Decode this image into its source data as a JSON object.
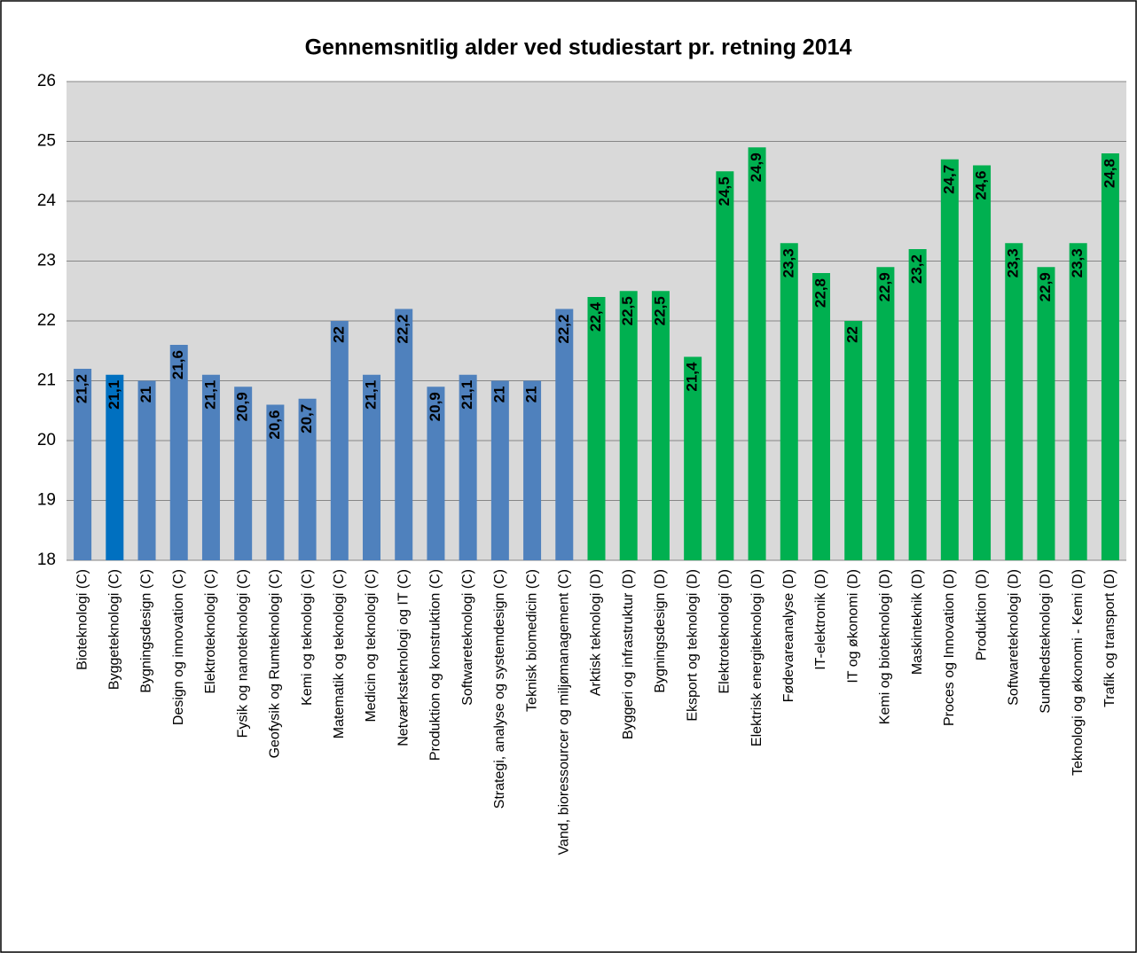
{
  "chart_data": {
    "type": "bar",
    "title": "Gennemsnitlig alder ved studiestart pr. retning 2014",
    "categories": [
      "Bioteknologi (C)",
      "Byggeteknologi (C)",
      "Bygningsdesign (C)",
      "Design og innovation (C)",
      "Elektroteknologi (C)",
      "Fysik og nanoteknologi (C)",
      "Geofysik og Rumteknologi (C)",
      "Kemi og teknologi (C)",
      "Matematik og teknologi (C)",
      "Medicin og teknologi (C)",
      "Netværksteknologi og IT (C)",
      "Produktion og konstruktion (C)",
      "Softwareteknologi (C)",
      "Strategi, analyse og systemdesign (C)",
      "Teknisk biomedicin (C)",
      "Vand, bioressourcer og miljømanagement (C)",
      "Arktisk teknologi (D)",
      "Byggeri og infrastruktur (D)",
      "Bygningsdesign (D)",
      "Eksport og teknologi (D)",
      "Elektroteknologi (D)",
      "Elektrisk energiteknologi (D)",
      "Fødevareanalyse (D)",
      "IT-elektronik (D)",
      "IT og økonomi (D)",
      "Kemi og bioteknologi (D)",
      "Maskinteknik (D)",
      "Proces og Innovation (D)",
      "Produktion (D)",
      "Softwareteknologi (D)",
      "Sundhedsteknologi (D)",
      "Teknologi og økonomi - Kemi (D)",
      "Trafik og transport (D)"
    ],
    "values": [
      21.2,
      21.1,
      21,
      21.6,
      21.1,
      20.9,
      20.6,
      20.7,
      22,
      21.1,
      22.2,
      20.9,
      21.1,
      21,
      21,
      22.2,
      22.4,
      22.5,
      22.5,
      21.4,
      24.5,
      24.9,
      23.3,
      22.8,
      22,
      22.9,
      23.2,
      24.7,
      24.6,
      23.3,
      22.9,
      23.3,
      24.8
    ],
    "value_labels": [
      "21,2",
      "21,1",
      "21",
      "21,6",
      "21,1",
      "20,9",
      "20,6",
      "20,7",
      "22",
      "21,1",
      "22,2",
      "20,9",
      "21,1",
      "21",
      "21",
      "22,2",
      "22,4",
      "22,5",
      "22,5",
      "21,4",
      "24,5",
      "24,9",
      "23,3",
      "22,8",
      "22",
      "22,9",
      "23,2",
      "24,7",
      "24,6",
      "23,3",
      "22,9",
      "23,3",
      "24,8"
    ],
    "colors": [
      "#4f81bd",
      "#0070c0",
      "#4f81bd",
      "#4f81bd",
      "#4f81bd",
      "#4f81bd",
      "#4f81bd",
      "#4f81bd",
      "#4f81bd",
      "#4f81bd",
      "#4f81bd",
      "#4f81bd",
      "#4f81bd",
      "#4f81bd",
      "#4f81bd",
      "#4f81bd",
      "#00b050",
      "#00b050",
      "#00b050",
      "#00b050",
      "#00b050",
      "#00b050",
      "#00b050",
      "#00b050",
      "#00b050",
      "#00b050",
      "#00b050",
      "#00b050",
      "#00b050",
      "#00b050",
      "#00b050",
      "#00b050",
      "#00b050"
    ],
    "ylim": [
      18,
      26
    ],
    "yticks": [
      18,
      19,
      20,
      21,
      22,
      23,
      24,
      25,
      26
    ],
    "grid": true
  }
}
